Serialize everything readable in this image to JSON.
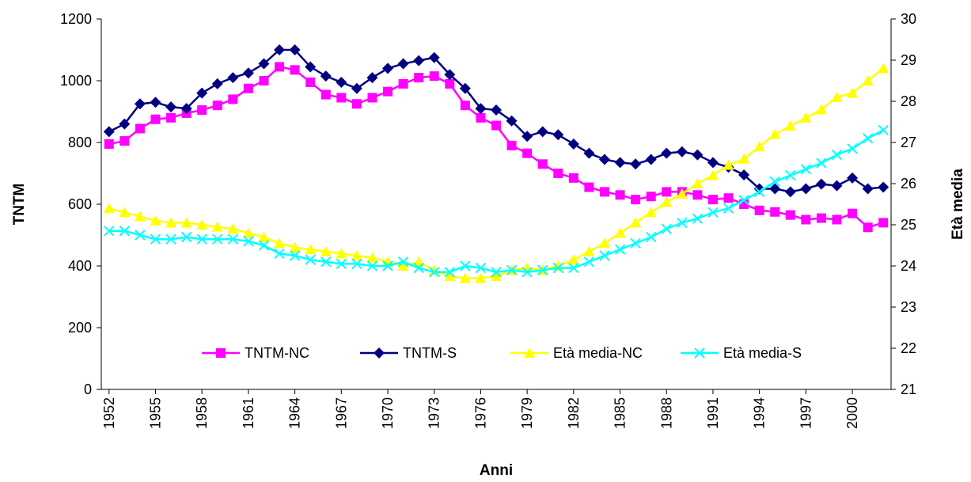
{
  "chart_data": {
    "type": "line",
    "x_label": "Anni",
    "y_label": "TNTM",
    "y2_label": "Età media",
    "x": [
      1952,
      1953,
      1954,
      1955,
      1956,
      1957,
      1958,
      1959,
      1960,
      1961,
      1962,
      1963,
      1964,
      1965,
      1966,
      1967,
      1968,
      1969,
      1970,
      1971,
      1972,
      1973,
      1974,
      1975,
      1976,
      1977,
      1978,
      1979,
      1980,
      1981,
      1982,
      1983,
      1984,
      1985,
      1986,
      1987,
      1988,
      1989,
      1990,
      1991,
      1992,
      1993,
      1994,
      1995,
      1996,
      1997,
      1998,
      1999,
      2000,
      2001,
      2002
    ],
    "xlim": [
      1951.5,
      2002.5
    ],
    "xticks": [
      1952,
      1955,
      1958,
      1961,
      1964,
      1967,
      1970,
      1973,
      1976,
      1979,
      1982,
      1985,
      1988,
      1991,
      1994,
      1997,
      2000
    ],
    "ylim": [
      0,
      1200
    ],
    "yticks": [
      0,
      200,
      400,
      600,
      800,
      1000,
      1200
    ],
    "y2lim": [
      21,
      30
    ],
    "y2ticks": [
      21,
      22,
      23,
      24,
      25,
      26,
      27,
      28,
      29,
      30
    ],
    "legend": "inside-bottom",
    "series": [
      {
        "name": "TNTM-NC",
        "color": "#ff00ff",
        "marker": "square",
        "values": [
          795,
          805,
          845,
          875,
          880,
          895,
          905,
          920,
          940,
          975,
          1000,
          1045,
          1035,
          995,
          955,
          945,
          925,
          945,
          965,
          990,
          1010,
          1015,
          990,
          920,
          880,
          855,
          790,
          765,
          730,
          700,
          685,
          655,
          640,
          630,
          615,
          625,
          640,
          640,
          630,
          615,
          620,
          600,
          580,
          575,
          565,
          550,
          555,
          550,
          570,
          525,
          540
        ]
      },
      {
        "name": "TNTM-S",
        "color": "#000080",
        "marker": "diamond",
        "values": [
          835,
          860,
          925,
          930,
          915,
          910,
          960,
          990,
          1010,
          1025,
          1055,
          1100,
          1100,
          1045,
          1015,
          995,
          975,
          1010,
          1040,
          1055,
          1065,
          1075,
          1020,
          975,
          910,
          905,
          870,
          820,
          835,
          825,
          795,
          765,
          745,
          735,
          730,
          745,
          765,
          770,
          760,
          735,
          720,
          695,
          650,
          650,
          640,
          650,
          665,
          660,
          685,
          650,
          655
        ]
      },
      {
        "name": "Età media-NC",
        "color": "#ffff00",
        "marker": "triangle",
        "axis": "y2",
        "values": [
          25.4,
          25.3,
          25.2,
          25.1,
          25.05,
          25.05,
          25.0,
          24.95,
          24.9,
          24.8,
          24.7,
          24.55,
          24.45,
          24.4,
          24.35,
          24.3,
          24.25,
          24.2,
          24.1,
          24.0,
          24.1,
          23.9,
          23.75,
          23.7,
          23.7,
          23.75,
          23.9,
          23.95,
          23.9,
          24.0,
          24.15,
          24.35,
          24.55,
          24.8,
          25.05,
          25.3,
          25.55,
          25.75,
          26.0,
          26.2,
          26.45,
          26.6,
          26.9,
          27.2,
          27.4,
          27.6,
          27.8,
          28.1,
          28.2,
          28.5,
          28.8
        ]
      },
      {
        "name": "Età media-S",
        "color": "#00ffff",
        "marker": "x",
        "axis": "y2",
        "values": [
          24.85,
          24.85,
          24.75,
          24.65,
          24.65,
          24.7,
          24.65,
          24.65,
          24.65,
          24.6,
          24.5,
          24.3,
          24.25,
          24.15,
          24.1,
          24.05,
          24.05,
          24.0,
          24.0,
          24.1,
          23.95,
          23.85,
          23.85,
          24.0,
          23.95,
          23.85,
          23.9,
          23.85,
          23.9,
          23.95,
          23.95,
          24.1,
          24.25,
          24.4,
          24.55,
          24.7,
          24.9,
          25.05,
          25.15,
          25.3,
          25.4,
          25.6,
          25.8,
          26.05,
          26.2,
          26.35,
          26.5,
          26.7,
          26.85,
          27.1,
          27.3
        ]
      }
    ]
  }
}
